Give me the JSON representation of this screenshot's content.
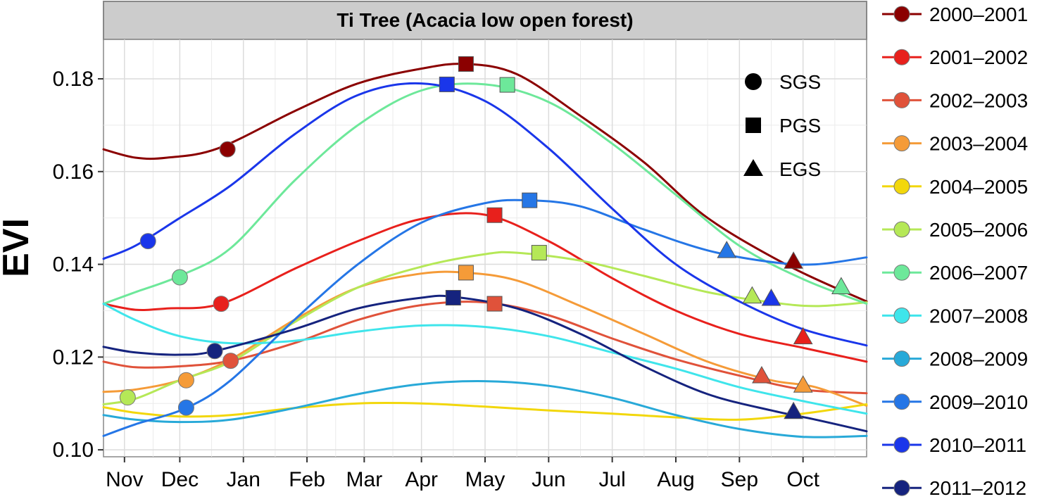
{
  "chart_data": {
    "type": "line",
    "title": "Ti Tree (Acacia low open forest)",
    "xlabel": "",
    "ylabel": "EVI",
    "xlim": [
      0,
      12
    ],
    "ylim": [
      0.0985,
      0.1885
    ],
    "x_ticks": [
      {
        "label": "Nov",
        "x": 0.33
      },
      {
        "label": "Dec",
        "x": 1.2
      },
      {
        "label": "Jan",
        "x": 2.2
      },
      {
        "label": "Feb",
        "x": 3.2
      },
      {
        "label": "Mar",
        "x": 4.1
      },
      {
        "label": "Apr",
        "x": 5.0
      },
      {
        "label": "May",
        "x": 6.0
      },
      {
        "label": "Jun",
        "x": 7.0
      },
      {
        "label": "Jul",
        "x": 8.0
      },
      {
        "label": "Aug",
        "x": 9.0
      },
      {
        "label": "Sep",
        "x": 10.0
      },
      {
        "label": "Oct",
        "x": 11.0
      }
    ],
    "x_minor_gridlines": [
      0.78,
      1.7,
      2.7,
      3.65,
      4.55,
      5.5,
      6.5,
      7.5,
      8.5,
      9.5,
      10.5,
      11.5
    ],
    "y_ticks": [
      0.1,
      0.12,
      0.14,
      0.16,
      0.18
    ],
    "y_tick_labels": [
      "0.10",
      "0.12",
      "0.14",
      "0.16",
      "0.18"
    ],
    "grid": true,
    "marker_legend": [
      {
        "shape": "circle",
        "label": "SGS"
      },
      {
        "shape": "square",
        "label": "PGS"
      },
      {
        "shape": "triangle",
        "label": "EGS"
      }
    ],
    "legend_position": "right",
    "series": [
      {
        "name": "2000–2001",
        "color": "#8B0000",
        "points": [
          [
            0,
            0.1648
          ],
          [
            0.5,
            0.163
          ],
          [
            1.0,
            0.163
          ],
          [
            1.8,
            0.165
          ],
          [
            3.0,
            0.173
          ],
          [
            4.0,
            0.179
          ],
          [
            5.0,
            0.1822
          ],
          [
            5.7,
            0.1832
          ],
          [
            6.5,
            0.181
          ],
          [
            7.5,
            0.172
          ],
          [
            8.5,
            0.162
          ],
          [
            9.5,
            0.15
          ],
          [
            10.8,
            0.1395
          ],
          [
            12,
            0.132
          ]
        ],
        "sgs": [
          1.95,
          0.1648
        ],
        "pgs": [
          5.7,
          0.1832
        ],
        "egs": [
          10.85,
          0.1405
        ]
      },
      {
        "name": "2001–2002",
        "color": "#E8201C",
        "points": [
          [
            0,
            0.1315
          ],
          [
            0.5,
            0.1302
          ],
          [
            1.0,
            0.1305
          ],
          [
            1.85,
            0.1315
          ],
          [
            3.0,
            0.139
          ],
          [
            4.0,
            0.145
          ],
          [
            5.0,
            0.1498
          ],
          [
            6.0,
            0.1507
          ],
          [
            7.0,
            0.145
          ],
          [
            8.0,
            0.137
          ],
          [
            9.0,
            0.13
          ],
          [
            10.0,
            0.125
          ],
          [
            11.0,
            0.122
          ],
          [
            12,
            0.119
          ]
        ],
        "sgs": [
          1.85,
          0.1315
        ],
        "pgs": [
          6.15,
          0.1506
        ],
        "egs": [
          11.0,
          0.1242
        ]
      },
      {
        "name": "2002–2003",
        "color": "#E0523A",
        "points": [
          [
            0,
            0.119
          ],
          [
            0.5,
            0.1178
          ],
          [
            1.2,
            0.118
          ],
          [
            2.0,
            0.1192
          ],
          [
            3.0,
            0.123
          ],
          [
            4.0,
            0.128
          ],
          [
            5.0,
            0.1312
          ],
          [
            6.0,
            0.1318
          ],
          [
            7.0,
            0.129
          ],
          [
            8.0,
            0.124
          ],
          [
            9.0,
            0.1195
          ],
          [
            10.0,
            0.116
          ],
          [
            11.0,
            0.113
          ],
          [
            12,
            0.1122
          ]
        ],
        "sgs": [
          2.0,
          0.1192
        ],
        "pgs": [
          6.15,
          0.1315
        ],
        "egs": [
          10.35,
          0.1158
        ]
      },
      {
        "name": "2003–2004",
        "color": "#F59B38",
        "points": [
          [
            0,
            0.1125
          ],
          [
            0.5,
            0.113
          ],
          [
            1.2,
            0.115
          ],
          [
            2.0,
            0.1195
          ],
          [
            3.0,
            0.128
          ],
          [
            4.0,
            0.135
          ],
          [
            5.0,
            0.138
          ],
          [
            5.7,
            0.1382
          ],
          [
            6.5,
            0.1365
          ],
          [
            7.5,
            0.131
          ],
          [
            8.5,
            0.125
          ],
          [
            9.5,
            0.119
          ],
          [
            10.5,
            0.115
          ],
          [
            11.2,
            0.1135
          ],
          [
            12,
            0.1095
          ]
        ],
        "sgs": [
          1.3,
          0.115
        ],
        "pgs": [
          5.7,
          0.1382
        ],
        "egs": [
          11.0,
          0.1138
        ]
      },
      {
        "name": "2004–2005",
        "color": "#F2D70C",
        "points": [
          [
            0,
            0.1092
          ],
          [
            0.5,
            0.108
          ],
          [
            1.2,
            0.1072
          ],
          [
            2.0,
            0.1075
          ],
          [
            3.0,
            0.109
          ],
          [
            4.0,
            0.11
          ],
          [
            5.0,
            0.11
          ],
          [
            6.0,
            0.1093
          ],
          [
            7.0,
            0.1085
          ],
          [
            8.0,
            0.1078
          ],
          [
            9.0,
            0.107
          ],
          [
            10.0,
            0.1065
          ],
          [
            11.0,
            0.1078
          ],
          [
            12,
            0.1098
          ]
        ],
        "sgs": null,
        "pgs": null,
        "egs": null
      },
      {
        "name": "2005–2006",
        "color": "#B5E857",
        "points": [
          [
            0,
            0.1098
          ],
          [
            0.5,
            0.111
          ],
          [
            1.2,
            0.115
          ],
          [
            2.0,
            0.119
          ],
          [
            3.0,
            0.1275
          ],
          [
            4.0,
            0.135
          ],
          [
            5.0,
            0.1395
          ],
          [
            6.0,
            0.1422
          ],
          [
            6.5,
            0.1425
          ],
          [
            7.5,
            0.1408
          ],
          [
            8.5,
            0.1375
          ],
          [
            9.5,
            0.134
          ],
          [
            10.5,
            0.1318
          ],
          [
            11.2,
            0.131
          ],
          [
            12,
            0.1318
          ]
        ],
        "sgs": [
          0.38,
          0.1113
        ],
        "pgs": [
          6.85,
          0.1425
        ],
        "egs": [
          10.2,
          0.133
        ]
      },
      {
        "name": "2006–2007",
        "color": "#6DE89A",
        "points": [
          [
            0,
            0.1315
          ],
          [
            0.5,
            0.134
          ],
          [
            1.2,
            0.1375
          ],
          [
            2.0,
            0.1435
          ],
          [
            3.0,
            0.158
          ],
          [
            4.0,
            0.17
          ],
          [
            5.0,
            0.1775
          ],
          [
            6.0,
            0.1788
          ],
          [
            7.0,
            0.175
          ],
          [
            8.0,
            0.166
          ],
          [
            9.0,
            0.155
          ],
          [
            10.0,
            0.144
          ],
          [
            11.0,
            0.1368
          ],
          [
            12,
            0.1315
          ]
        ],
        "sgs": [
          1.2,
          0.1372
        ],
        "pgs": [
          6.35,
          0.1787
        ],
        "egs": [
          11.6,
          0.135
        ]
      },
      {
        "name": "2007–2008",
        "color": "#3FE5EB",
        "points": [
          [
            0,
            0.1315
          ],
          [
            0.5,
            0.128
          ],
          [
            1.2,
            0.1245
          ],
          [
            2.0,
            0.123
          ],
          [
            3.0,
            0.1235
          ],
          [
            4.0,
            0.1255
          ],
          [
            5.0,
            0.1268
          ],
          [
            6.0,
            0.1265
          ],
          [
            7.0,
            0.1245
          ],
          [
            8.0,
            0.121
          ],
          [
            9.0,
            0.1175
          ],
          [
            10.0,
            0.1135
          ],
          [
            11.0,
            0.1105
          ],
          [
            12,
            0.1078
          ]
        ],
        "sgs": null,
        "pgs": null,
        "egs": null
      },
      {
        "name": "2008–2009",
        "color": "#28A9D8",
        "points": [
          [
            0,
            0.1075
          ],
          [
            0.5,
            0.1065
          ],
          [
            1.2,
            0.106
          ],
          [
            2.0,
            0.1065
          ],
          [
            3.0,
            0.109
          ],
          [
            4.0,
            0.112
          ],
          [
            5.0,
            0.1142
          ],
          [
            6.0,
            0.1148
          ],
          [
            7.0,
            0.1138
          ],
          [
            8.0,
            0.1112
          ],
          [
            9.0,
            0.1075
          ],
          [
            10.0,
            0.1045
          ],
          [
            11.0,
            0.1028
          ],
          [
            12,
            0.103
          ]
        ],
        "sgs": null,
        "pgs": null,
        "egs": null
      },
      {
        "name": "2009–2010",
        "color": "#2576E6",
        "points": [
          [
            0,
            0.103
          ],
          [
            0.5,
            0.1055
          ],
          [
            1.3,
            0.109
          ],
          [
            2.0,
            0.115
          ],
          [
            3.0,
            0.128
          ],
          [
            4.0,
            0.14
          ],
          [
            5.0,
            0.149
          ],
          [
            6.0,
            0.1532
          ],
          [
            6.7,
            0.1538
          ],
          [
            7.5,
            0.1525
          ],
          [
            8.5,
            0.1475
          ],
          [
            9.5,
            0.143
          ],
          [
            10.5,
            0.1405
          ],
          [
            11.2,
            0.14
          ],
          [
            12,
            0.1415
          ]
        ],
        "sgs": [
          1.3,
          0.1091
        ],
        "pgs": [
          6.7,
          0.1538
        ],
        "egs": [
          9.8,
          0.1428
        ]
      },
      {
        "name": "2010–2011",
        "color": "#1A36EA",
        "points": [
          [
            0,
            0.1412
          ],
          [
            0.5,
            0.144
          ],
          [
            1.2,
            0.15
          ],
          [
            2.0,
            0.157
          ],
          [
            3.0,
            0.168
          ],
          [
            4.0,
            0.1765
          ],
          [
            5.0,
            0.179
          ],
          [
            6.0,
            0.1752
          ],
          [
            7.0,
            0.165
          ],
          [
            8.0,
            0.152
          ],
          [
            9.0,
            0.14
          ],
          [
            10.0,
            0.132
          ],
          [
            11.0,
            0.126
          ],
          [
            12,
            0.1225
          ]
        ],
        "sgs": [
          0.7,
          0.145
        ],
        "pgs": [
          5.4,
          0.1788
        ],
        "egs": [
          10.5,
          0.1325
        ]
      },
      {
        "name": "2011–2012",
        "color": "#15237E",
        "points": [
          [
            0,
            0.1222
          ],
          [
            0.5,
            0.121
          ],
          [
            1.2,
            0.1205
          ],
          [
            1.75,
            0.1213
          ],
          [
            3.0,
            0.126
          ],
          [
            4.0,
            0.1305
          ],
          [
            5.0,
            0.1328
          ],
          [
            5.5,
            0.133
          ],
          [
            6.5,
            0.1305
          ],
          [
            7.5,
            0.125
          ],
          [
            8.5,
            0.118
          ],
          [
            9.5,
            0.112
          ],
          [
            10.5,
            0.1085
          ],
          [
            11.2,
            0.1065
          ],
          [
            12,
            0.104
          ]
        ],
        "sgs": [
          1.75,
          0.1213
        ],
        "pgs": [
          5.5,
          0.1328
        ],
        "egs": [
          10.85,
          0.1081
        ]
      }
    ]
  }
}
